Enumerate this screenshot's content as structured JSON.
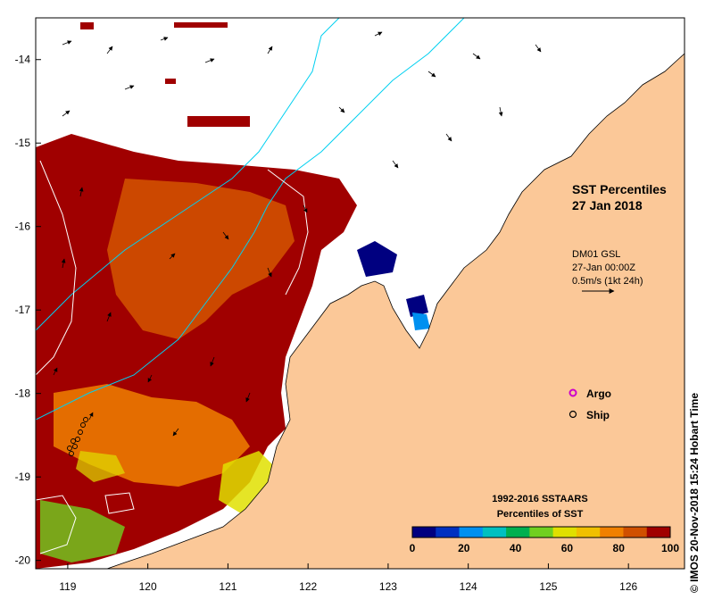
{
  "title": {
    "line1": "SST Percentiles",
    "line2": "27 Jan 2018"
  },
  "current_info": {
    "line1": "DM01 GSL",
    "line2": "27-Jan 00:00Z",
    "line3": "0.5m/s (1kt 24h)"
  },
  "legend": {
    "argo": "Argo",
    "ship": "Ship",
    "argo_color": "#cc00cc"
  },
  "colorbar": {
    "title1": "1992-2016 SSTAARS",
    "title2": "Percentiles of SST",
    "ticks": [
      "0",
      "20",
      "40",
      "60",
      "80",
      "100"
    ],
    "colors": [
      "#000080",
      "#0030c0",
      "#0090f0",
      "#00c0c0",
      "#00b050",
      "#70d020",
      "#e0e000",
      "#f0c000",
      "#f08000",
      "#d05000",
      "#a00000"
    ]
  },
  "axes": {
    "x_ticks": [
      "119",
      "120",
      "121",
      "122",
      "123",
      "124",
      "125",
      "126"
    ],
    "y_ticks": [
      "-14",
      "-15",
      "-16",
      "-17",
      "-18",
      "-19",
      "-20"
    ],
    "x_range": [
      118.6,
      126.7
    ],
    "y_range": [
      -20.1,
      -13.5
    ]
  },
  "colors": {
    "land": "#fbc898",
    "ocean_missing": "#ffffff",
    "bathymetry": "#00d0f0",
    "sst_dark": "#a00000"
  },
  "copyright": "© IMOS 20-Nov-2018 15:24 Hobart Time"
}
